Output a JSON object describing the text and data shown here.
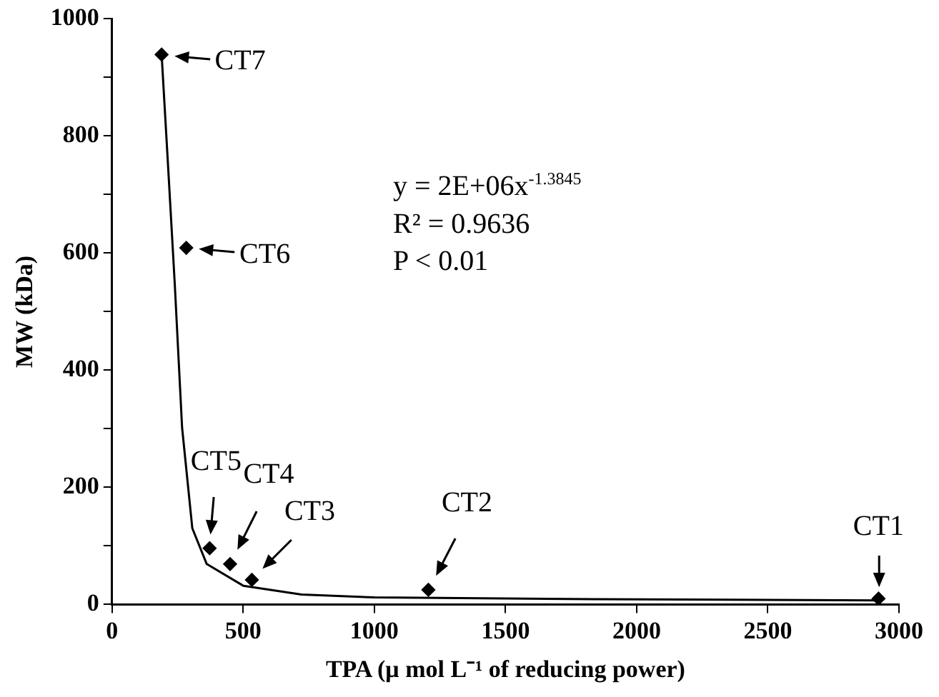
{
  "chart_data": {
    "type": "scatter",
    "xlabel": "TPA (μ mol L⁻¹ of reducing power)",
    "ylabel": "MW (kDa)",
    "xlim": [
      0,
      3000
    ],
    "xticks": [
      0,
      500,
      1000,
      1500,
      2000,
      2500,
      3000
    ],
    "ylim": [
      0,
      1000
    ],
    "yticks": [
      0,
      {
        "value": 100,
        "label": null
      },
      200,
      {
        "value": 300,
        "label": null
      },
      400,
      {
        "value": 500,
        "label": null
      },
      600,
      {
        "value": 700,
        "label": null
      },
      800,
      {
        "value": 900,
        "label": null
      },
      1000
    ],
    "grid": false,
    "legend": false,
    "series": [
      {
        "color": "#000000",
        "marker": "diamond",
        "x": [
          189,
          283,
          372,
          450,
          533,
          1206,
          2922
        ],
        "values": [
          939,
          609,
          96,
          69,
          42,
          25,
          10
        ]
      },
      {
        "type": "line",
        "color": "#000000",
        "marker": "none",
        "x": [
          189,
          211,
          239,
          267,
          306,
          361,
          500,
          722,
          1000,
          1833,
          2922
        ],
        "values": [
          939,
          769,
          548,
          302,
          130,
          69,
          32,
          17,
          12,
          9,
          7
        ]
      }
    ],
    "annotations": [
      {
        "text": "CT7",
        "x": 189,
        "y": 939
      },
      {
        "text": "CT6",
        "x": 283,
        "y": 609
      },
      {
        "text": "CT5",
        "x": 372,
        "y": 96
      },
      {
        "text": "CT4",
        "x": 450,
        "y": 69
      },
      {
        "text": "CT3",
        "x": 533,
        "y": 42
      },
      {
        "text": "CT2",
        "x": 1206,
        "y": 25
      },
      {
        "text": "CT1",
        "x": 2922,
        "y": 10
      },
      "y = 2E+06x$^{-1.3845}$",
      "R² = 0.9636",
      "P < 0.01"
    ]
  }
}
